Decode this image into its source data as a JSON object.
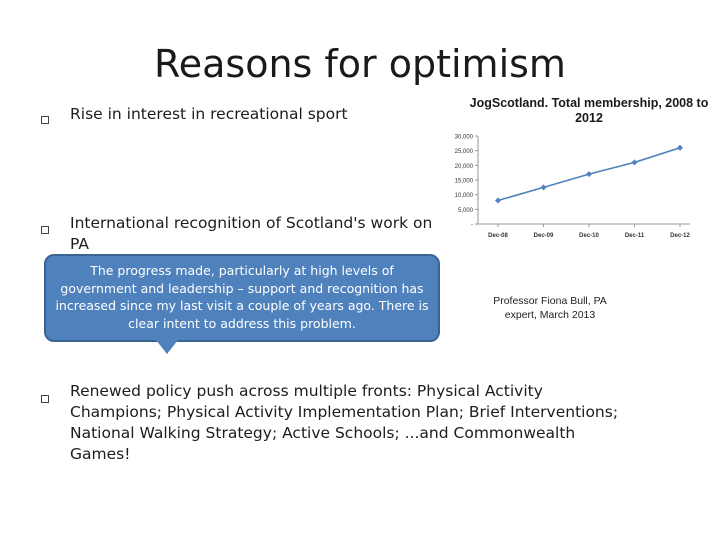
{
  "slide": {
    "title": "Reasons for optimism",
    "bullets": [
      "Rise in interest in recreational sport",
      "International recognition of Scotland's work on PA",
      "Renewed policy push across multiple fronts: Physical Activity Champions; Physical Activity Implementation Plan; Brief Interventions; National Walking Strategy; Active Schools; ...and Commonwealth Games!"
    ],
    "quote": "The progress made, particularly at high levels of government and leadership – support and recognition has increased since my last visit a couple of years ago.  There is clear intent to address this problem.",
    "quote_source": "Professor Fiona Bull, PA expert, March 2013"
  },
  "chart_data": {
    "type": "line",
    "title": "JogScotland. Total membership, 2008 to 2012",
    "categories": [
      "Dec-08",
      "Dec-09",
      "Dec-10",
      "Dec-11",
      "Dec-12"
    ],
    "series": [
      {
        "values": [
          8000,
          12500,
          17000,
          21000,
          26000
        ]
      }
    ],
    "ylim": [
      0,
      30000
    ],
    "yticks": [
      "-",
      "5,000",
      "10,000",
      "15,000",
      "20,000",
      "25,000",
      "30,000"
    ],
    "color": "#4f81bd",
    "grid": false
  }
}
